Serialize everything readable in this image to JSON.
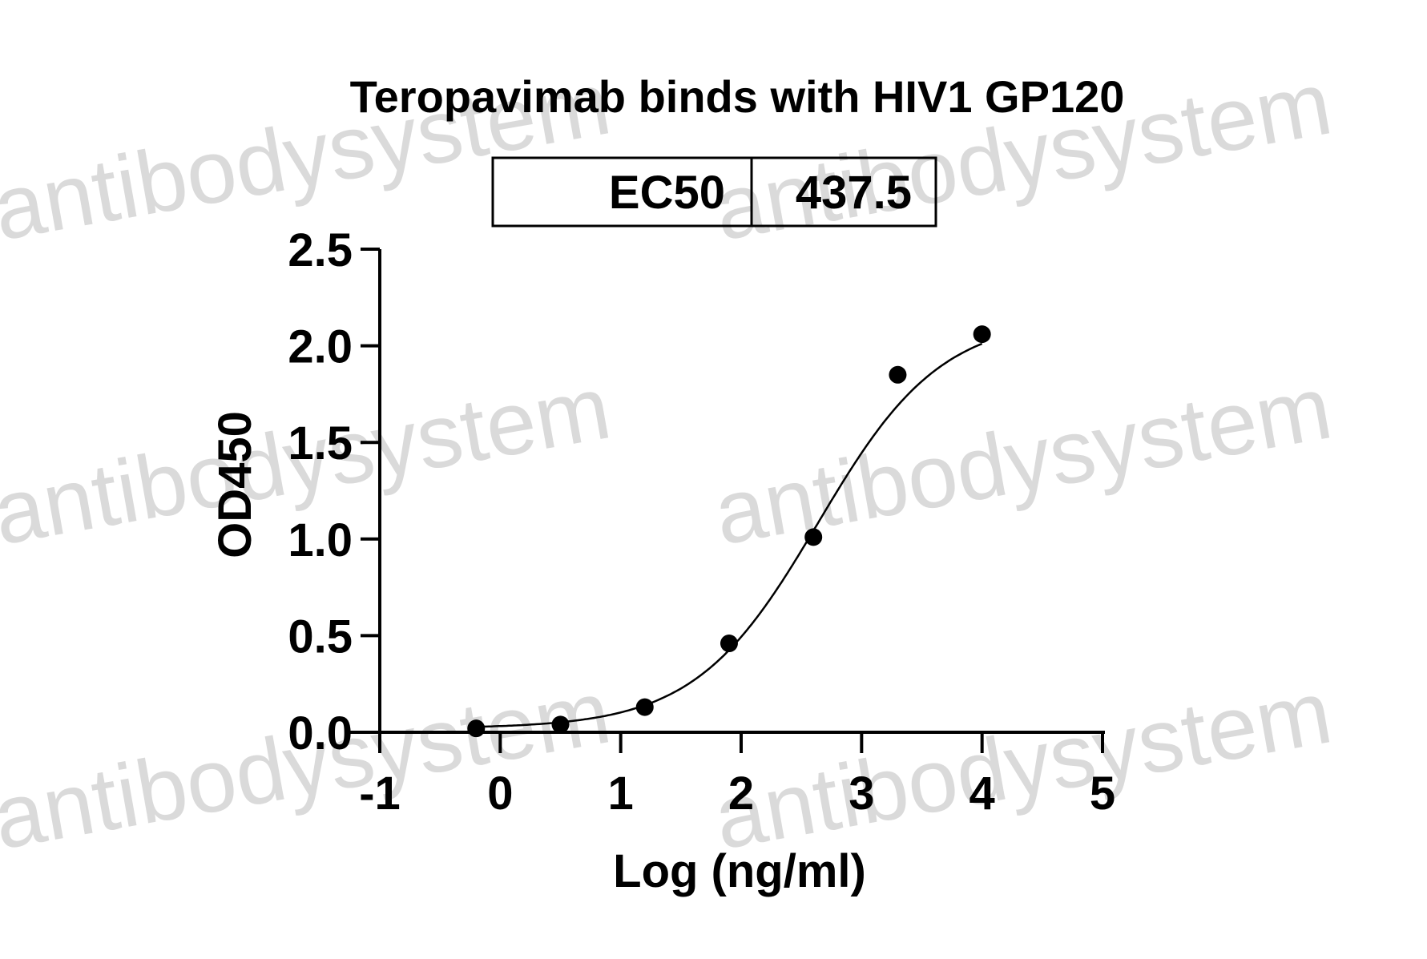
{
  "watermark": "antibodysystem",
  "chart_data": {
    "type": "scatter",
    "title": "Teropavimab binds with HIV1 GP120",
    "xlabel": "Log (ng/ml)",
    "ylabel": "OD450",
    "xlim": [
      -1,
      5
    ],
    "ylim": [
      0,
      2.5
    ],
    "x_ticks": [
      "-1",
      "0",
      "1",
      "2",
      "3",
      "4",
      "5"
    ],
    "y_ticks": [
      "0.0",
      "0.5",
      "1.0",
      "1.5",
      "2.0",
      "2.5"
    ],
    "ec50_table": {
      "label": "EC50",
      "value": "437.5"
    },
    "series": [
      {
        "x": [
          -0.2,
          0.5,
          1.2,
          1.9,
          2.6,
          3.3,
          4.0
        ],
        "y": [
          0.02,
          0.04,
          0.13,
          0.46,
          1.01,
          1.85,
          2.06
        ],
        "color": "#000000",
        "fit": "4PL sigmoidal curve"
      }
    ],
    "grid": false,
    "legend": "none"
  }
}
